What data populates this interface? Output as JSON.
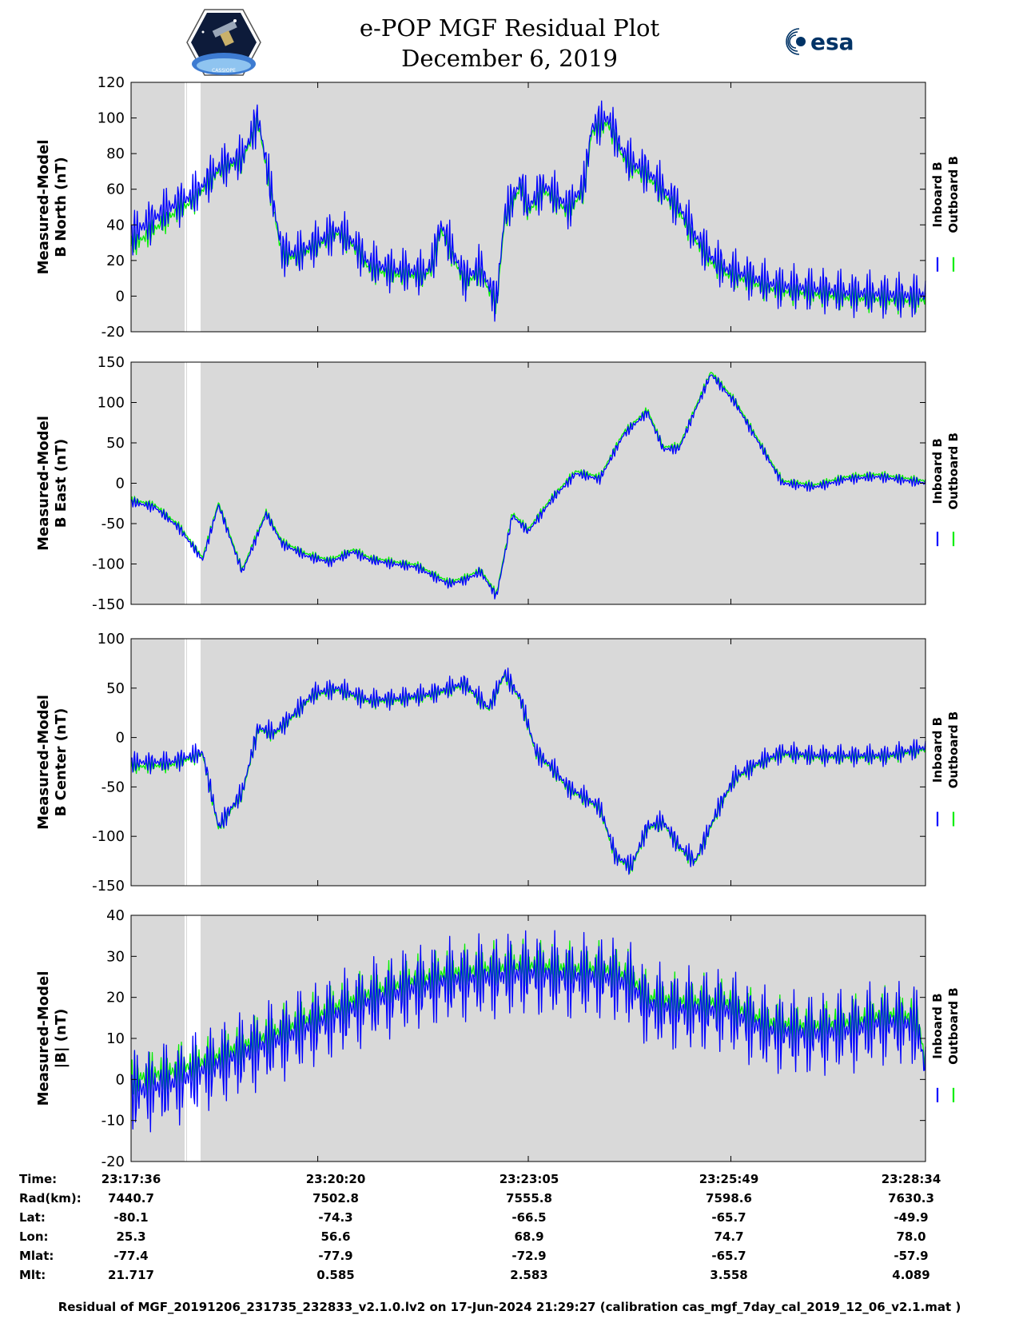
{
  "header": {
    "title_line1": "e-POP MGF Residual Plot",
    "title_line2": "December 6, 2019",
    "left_logo_text": "CASSIOPE",
    "right_logo_text": "esa"
  },
  "chart_data": [
    {
      "type": "line",
      "ylabel": [
        "Measured-Model",
        "B North (nT)"
      ],
      "ylim": [
        -20,
        120
      ],
      "yticks": [
        -20,
        0,
        20,
        40,
        60,
        80,
        100,
        120
      ],
      "legend": [
        "Inboard B",
        "Outboard B"
      ],
      "legend_placement": "right",
      "series": [
        {
          "name": "Inboard B",
          "color": "#0000ff",
          "x": [
            0,
            0.02,
            0.05,
            0.08,
            0.11,
            0.14,
            0.16,
            0.19,
            0.21,
            0.26,
            0.28,
            0.3,
            0.33,
            0.37,
            0.38,
            0.39,
            0.42,
            0.44,
            0.46,
            0.47,
            0.49,
            0.5,
            0.52,
            0.55,
            0.57,
            0.58,
            0.6,
            0.62,
            0.63,
            0.65,
            0.67,
            0.69,
            0.71,
            0.73,
            0.75,
            0.78,
            0.8,
            0.83,
            0.86,
            0.9,
            0.94,
            0.98,
            1
          ],
          "y": [
            34,
            41,
            50,
            57,
            72,
            78,
            100,
            25,
            24,
            37,
            30,
            18,
            15,
            13,
            20,
            40,
            10,
            16,
            -3,
            45,
            64,
            50,
            62,
            50,
            62,
            95,
            100,
            80,
            75,
            70,
            60,
            50,
            34,
            22,
            15,
            11,
            7,
            5,
            4,
            2,
            1,
            0,
            1
          ],
          "spread": 14
        },
        {
          "name": "Outboard B",
          "color": "#00ee00",
          "x": [
            0,
            0.02,
            0.05,
            0.08,
            0.11,
            0.14,
            0.16,
            0.19,
            0.21,
            0.26,
            0.28,
            0.3,
            0.33,
            0.37,
            0.38,
            0.39,
            0.42,
            0.44,
            0.46,
            0.47,
            0.49,
            0.5,
            0.52,
            0.55,
            0.57,
            0.58,
            0.6,
            0.62,
            0.63,
            0.65,
            0.67,
            0.69,
            0.71,
            0.73,
            0.75,
            0.78,
            0.8,
            0.83,
            0.86,
            0.9,
            0.94,
            0.98,
            1
          ],
          "y": [
            28,
            34,
            45,
            54,
            70,
            76,
            98,
            22,
            22,
            35,
            28,
            15,
            12,
            11,
            17,
            37,
            7,
            13,
            -6,
            42,
            61,
            47,
            59,
            47,
            59,
            92,
            97,
            77,
            72,
            67,
            57,
            47,
            31,
            19,
            12,
            8,
            4,
            2,
            1,
            -1,
            -2,
            -3,
            -2
          ],
          "spread": 8
        }
      ]
    },
    {
      "type": "line",
      "ylabel": [
        "Measured-Model",
        "B East (nT)"
      ],
      "ylim": [
        -150,
        150
      ],
      "yticks": [
        -150,
        -100,
        -50,
        0,
        50,
        100,
        150
      ],
      "legend": [
        "Inboard B",
        "Outboard B"
      ],
      "legend_placement": "right",
      "series": [
        {
          "name": "Inboard B",
          "color": "#0000ff",
          "x": [
            0,
            0.03,
            0.06,
            0.09,
            0.11,
            0.14,
            0.17,
            0.19,
            0.22,
            0.25,
            0.28,
            0.3,
            0.33,
            0.36,
            0.38,
            0.4,
            0.42,
            0.44,
            0.46,
            0.48,
            0.5,
            0.53,
            0.56,
            0.59,
            0.62,
            0.65,
            0.67,
            0.69,
            0.71,
            0.73,
            0.76,
            0.79,
            0.82,
            0.86,
            0.9,
            0.94,
            1
          ],
          "y": [
            -23,
            -30,
            -55,
            -95,
            -27,
            -110,
            -38,
            -75,
            -90,
            -98,
            -85,
            -95,
            -100,
            -104,
            -115,
            -125,
            -120,
            -110,
            -140,
            -40,
            -60,
            -20,
            12,
            5,
            60,
            88,
            42,
            43,
            90,
            135,
            100,
            50,
            0,
            -5,
            5,
            8,
            0
          ],
          "spread": 7
        },
        {
          "name": "Outboard B",
          "color": "#00ee00",
          "x": [
            0,
            0.03,
            0.06,
            0.09,
            0.11,
            0.14,
            0.17,
            0.19,
            0.22,
            0.25,
            0.28,
            0.3,
            0.33,
            0.36,
            0.38,
            0.4,
            0.42,
            0.44,
            0.46,
            0.48,
            0.5,
            0.53,
            0.56,
            0.59,
            0.62,
            0.65,
            0.67,
            0.69,
            0.71,
            0.73,
            0.76,
            0.79,
            0.82,
            0.86,
            0.9,
            0.94,
            1
          ],
          "y": [
            -20,
            -27,
            -52,
            -92,
            -24,
            -107,
            -35,
            -72,
            -87,
            -95,
            -82,
            -92,
            -97,
            -101,
            -112,
            -122,
            -117,
            -107,
            -137,
            -37,
            -57,
            -17,
            15,
            8,
            63,
            91,
            45,
            46,
            93,
            138,
            103,
            53,
            3,
            -2,
            8,
            11,
            3
          ],
          "spread": 5
        }
      ]
    },
    {
      "type": "line",
      "ylabel": [
        "Measured-Model",
        "B Center (nT)"
      ],
      "ylim": [
        -150,
        100
      ],
      "yticks": [
        -150,
        -100,
        -50,
        0,
        50,
        100
      ],
      "legend": [
        "Inboard B",
        "Outboard B"
      ],
      "legend_placement": "right",
      "series": [
        {
          "name": "Inboard B",
          "color": "#0000ff",
          "x": [
            0,
            0.05,
            0.09,
            0.11,
            0.14,
            0.16,
            0.18,
            0.2,
            0.23,
            0.26,
            0.3,
            0.34,
            0.38,
            0.42,
            0.45,
            0.47,
            0.49,
            0.51,
            0.53,
            0.55,
            0.57,
            0.59,
            0.61,
            0.63,
            0.65,
            0.67,
            0.69,
            0.71,
            0.74,
            0.76,
            0.79,
            0.82,
            0.86,
            0.9,
            0.95,
            1
          ],
          "y": [
            -25,
            -25,
            -15,
            -90,
            -55,
            10,
            5,
            20,
            45,
            50,
            38,
            40,
            45,
            55,
            30,
            65,
            40,
            -15,
            -30,
            -50,
            -60,
            -70,
            -120,
            -130,
            -90,
            -85,
            -110,
            -125,
            -70,
            -40,
            -25,
            -15,
            -18,
            -18,
            -18,
            -10
          ],
          "spread": 12
        },
        {
          "name": "Outboard B",
          "color": "#00ee00",
          "x": [
            0,
            0.05,
            0.09,
            0.11,
            0.14,
            0.16,
            0.18,
            0.2,
            0.23,
            0.26,
            0.3,
            0.34,
            0.38,
            0.42,
            0.45,
            0.47,
            0.49,
            0.51,
            0.53,
            0.55,
            0.57,
            0.59,
            0.61,
            0.63,
            0.65,
            0.67,
            0.69,
            0.71,
            0.74,
            0.76,
            0.79,
            0.82,
            0.86,
            0.9,
            0.95,
            1
          ],
          "y": [
            -30,
            -28,
            -17,
            -92,
            -57,
            8,
            3,
            18,
            43,
            48,
            36,
            38,
            43,
            53,
            28,
            63,
            38,
            -17,
            -32,
            -52,
            -62,
            -72,
            -122,
            -132,
            -92,
            -87,
            -112,
            -127,
            -72,
            -42,
            -27,
            -17,
            -20,
            -20,
            -20,
            -12
          ],
          "spread": 8
        }
      ]
    },
    {
      "type": "line",
      "ylabel": [
        "Measured-Model",
        "|B| (nT)"
      ],
      "ylim": [
        -20,
        40
      ],
      "yticks": [
        -20,
        -10,
        0,
        10,
        20,
        30,
        40
      ],
      "legend": [
        "Inboard B",
        "Outboard B"
      ],
      "legend_placement": "right",
      "series": [
        {
          "name": "Inboard B",
          "color": "#0000ff",
          "x": [
            0,
            0.05,
            0.1,
            0.15,
            0.2,
            0.25,
            0.3,
            0.35,
            0.4,
            0.45,
            0.5,
            0.55,
            0.6,
            0.63,
            0.65,
            0.7,
            0.75,
            0.8,
            0.85,
            0.9,
            0.95,
            0.99,
            1
          ],
          "y": [
            -3,
            -1,
            3,
            7,
            11,
            15,
            19,
            22,
            24,
            25,
            26,
            25,
            25,
            23,
            18,
            17,
            17,
            12,
            11,
            12,
            14,
            13,
            2
          ],
          "spread": 11
        },
        {
          "name": "Outboard B",
          "color": "#00ee00",
          "x": [
            0,
            0.05,
            0.1,
            0.15,
            0.2,
            0.25,
            0.3,
            0.35,
            0.4,
            0.45,
            0.5,
            0.55,
            0.6,
            0.63,
            0.65,
            0.7,
            0.75,
            0.8,
            0.85,
            0.9,
            0.95,
            0.99,
            1
          ],
          "y": [
            0,
            2,
            5,
            9,
            13,
            17,
            21,
            24,
            26,
            27,
            28,
            27,
            27,
            25,
            20,
            19,
            19,
            14,
            13,
            14,
            16,
            15,
            4
          ],
          "spread": 7
        }
      ]
    }
  ],
  "info_table": {
    "labels": [
      "Time:",
      "Rad(km):",
      "Lat:",
      "Lon:",
      "Mlat:",
      "Mlt:"
    ],
    "columns": [
      {
        "values": [
          "23:17:36",
          "7440.7",
          "-80.1",
          "25.3",
          "-77.4",
          "21.717"
        ]
      },
      {
        "values": [
          "23:20:20",
          "7502.8",
          "-74.3",
          "56.6",
          "-77.9",
          "0.585"
        ]
      },
      {
        "values": [
          "23:23:05",
          "7555.8",
          "-66.5",
          "68.9",
          "-72.9",
          "2.583"
        ]
      },
      {
        "values": [
          "23:25:49",
          "7598.6",
          "-65.7",
          "74.7",
          "-65.7",
          "3.558"
        ]
      },
      {
        "values": [
          "23:28:34",
          "7630.3",
          "-49.9",
          "78.0",
          "-57.9",
          "4.089"
        ]
      }
    ]
  },
  "footer": "Residual of MGF_20191206_231735_232833_v2.1.0.lv2 on 17-Jun-2024 21:29:27 (calibration cas_mgf_7day_cal_2019_12_06_v2.1.mat )",
  "colors": {
    "plot_bg": "#d9d9d9",
    "data_gap": "#ffffff",
    "inboard": "#0000ff",
    "outboard": "#00ee00"
  }
}
